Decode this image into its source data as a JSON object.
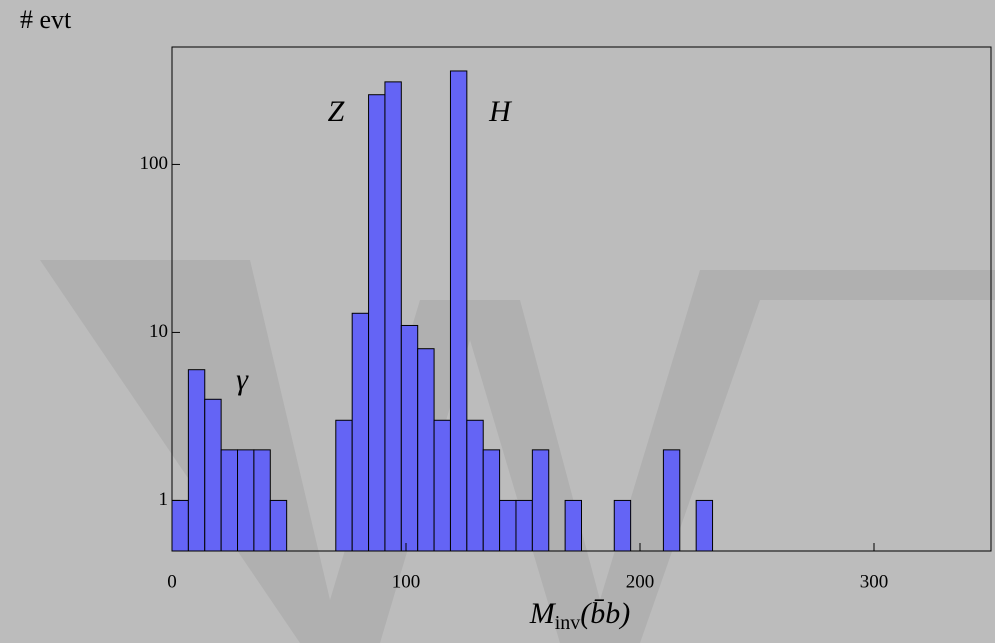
{
  "chart_data": {
    "type": "histogram",
    "ylabel": "# evt",
    "xlabel": {
      "main": "M",
      "sub": "inv",
      "arg": "(b̄b)"
    },
    "annotations": [
      "Z",
      "H",
      "γ"
    ],
    "bins": [
      0,
      7,
      14,
      21,
      28,
      35,
      42,
      49,
      56,
      63,
      70,
      77,
      84,
      91,
      98,
      105,
      112,
      119,
      126,
      133,
      140,
      147,
      154,
      161,
      168,
      175,
      182,
      189,
      196,
      203,
      210,
      217,
      224,
      231
    ],
    "values": [
      1,
      6,
      4,
      2,
      2,
      2,
      1,
      0,
      0,
      0,
      3,
      13,
      260,
      310,
      11,
      8,
      3,
      360,
      3,
      2,
      1,
      1,
      2,
      0,
      1,
      0,
      0,
      1,
      0,
      0,
      2,
      0,
      1
    ],
    "color": "#6464f5",
    "xlim": [
      0,
      350
    ],
    "xticks": [
      0,
      100,
      200,
      300
    ],
    "ylim": [
      0.5,
      500
    ],
    "yticks": [
      1,
      10,
      100
    ],
    "log_y": true
  }
}
